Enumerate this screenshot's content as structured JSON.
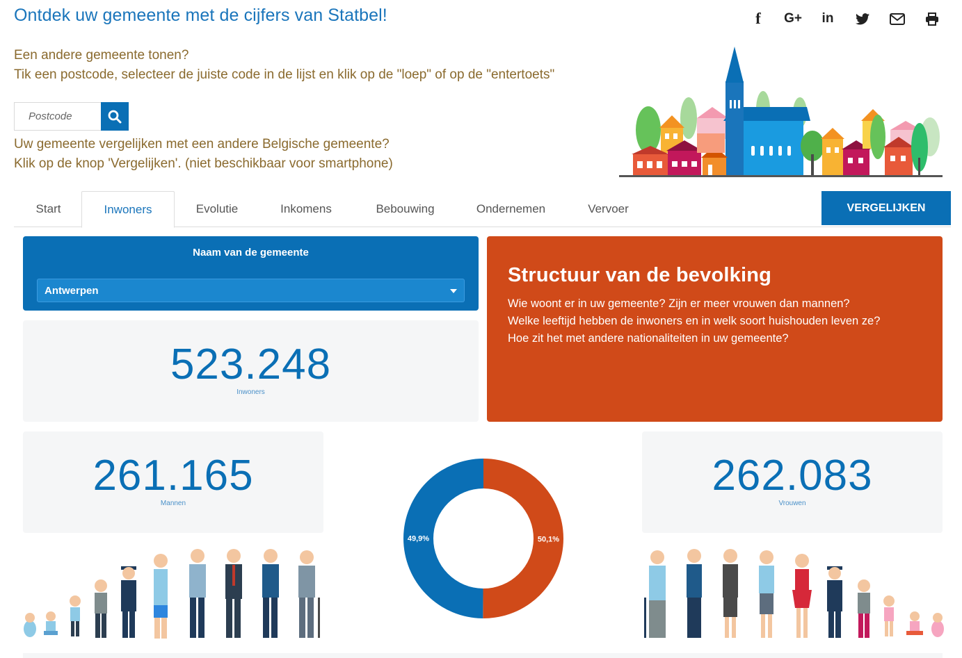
{
  "header": {
    "title": "Ontdek uw gemeente met de cijfers van Statbel!",
    "share_icons": [
      "facebook-icon",
      "google-plus-icon",
      "linkedin-icon",
      "twitter-icon",
      "mail-icon",
      "print-icon"
    ],
    "share_glyphs": {
      "facebook": "f",
      "google_plus": "G+",
      "linkedin": "in"
    }
  },
  "intro": {
    "line1": "Een andere gemeente tonen?",
    "line2": "Tik een postcode, selecteer de juiste code in de lijst en klik op de \"loep\" of op de \"entertoets\"",
    "line3": "Uw gemeente vergelijken met een andere Belgische gemeente?",
    "line4": "Klik op de knop 'Vergelijken'. (niet beschikbaar voor smartphone)"
  },
  "search": {
    "placeholder": "Postcode",
    "value": ""
  },
  "tabs": [
    {
      "label": "Start",
      "active": false
    },
    {
      "label": "Inwoners",
      "active": true
    },
    {
      "label": "Evolutie",
      "active": false
    },
    {
      "label": "Inkomens",
      "active": false
    },
    {
      "label": "Bebouwing",
      "active": false
    },
    {
      "label": "Ondernemen",
      "active": false
    },
    {
      "label": "Vervoer",
      "active": false
    }
  ],
  "compare_button": "VERGELIJKEN",
  "municipality": {
    "label": "Naam van de gemeente",
    "selected": "Antwerpen"
  },
  "totals": {
    "inhabitants": {
      "value": "523.248",
      "label": "Inwoners"
    },
    "men": {
      "value": "261.165",
      "label": "Mannen"
    },
    "women": {
      "value": "262.083",
      "label": "Vrouwen"
    }
  },
  "info": {
    "title": "Structuur van de bevolking",
    "line1": "Wie woont er in uw gemeente?  Zijn er meer vrouwen dan mannen?",
    "line2": "Welke leeftijd hebben de inwoners en in welk soort huishouden leven ze?",
    "line3": "Hoe zit het met andere nationaliteiten in uw gemeente?"
  },
  "colors": {
    "blue": "#0a6fb5",
    "orange": "#d04a19",
    "title_blue": "#1a75bb",
    "intro_brown": "#8a6a2e"
  },
  "chart_data": {
    "type": "pie",
    "slices": [
      {
        "label": "49,9%",
        "value": 49.9,
        "color": "#0a6fb5"
      },
      {
        "label": "50,1%",
        "value": 50.1,
        "color": "#d04a19"
      }
    ]
  }
}
